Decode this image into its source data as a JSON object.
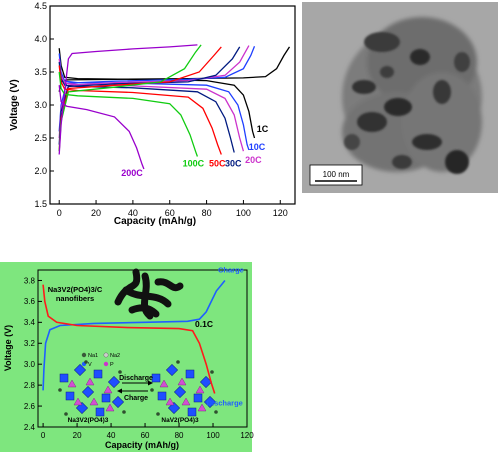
{
  "chart_data": [
    {
      "type": "line",
      "xlabel": "Capacity (mAh/g)",
      "ylabel": "Voltage (V)",
      "xlim": [
        -5,
        128
      ],
      "ylim": [
        1.5,
        4.5
      ],
      "xticks": [
        0,
        20,
        40,
        60,
        80,
        100,
        120
      ],
      "yticks": [
        1.5,
        2.0,
        2.5,
        3.0,
        3.5,
        4.0,
        4.5
      ],
      "grid": false,
      "series": [
        {
          "name": "1C",
          "color": "#000000",
          "charge": [
            [
              0,
              3.2
            ],
            [
              1,
              3.35
            ],
            [
              4,
              3.38
            ],
            [
              30,
              3.39
            ],
            [
              70,
              3.4
            ],
            [
              100,
              3.41
            ],
            [
              112,
              3.43
            ],
            [
              118,
              3.55
            ],
            [
              122,
              3.75
            ],
            [
              125,
              3.88
            ]
          ],
          "discharge": [
            [
              0,
              3.86
            ],
            [
              1,
              3.6
            ],
            [
              3,
              3.42
            ],
            [
              10,
              3.4
            ],
            [
              40,
              3.39
            ],
            [
              80,
              3.37
            ],
            [
              95,
              3.3
            ],
            [
              100,
              3.15
            ],
            [
              103,
              2.9
            ],
            [
              105,
              2.6
            ],
            [
              106,
              2.5
            ]
          ]
        },
        {
          "name": "10C",
          "color": "#1f3fff",
          "charge": [
            [
              0,
              2.6
            ],
            [
              1,
              3.0
            ],
            [
              4,
              3.33
            ],
            [
              30,
              3.36
            ],
            [
              70,
              3.39
            ],
            [
              90,
              3.42
            ],
            [
              100,
              3.55
            ],
            [
              104,
              3.75
            ],
            [
              106,
              3.89
            ]
          ],
          "discharge": [
            [
              0,
              3.78
            ],
            [
              1,
              3.5
            ],
            [
              3,
              3.36
            ],
            [
              10,
              3.34
            ],
            [
              40,
              3.33
            ],
            [
              80,
              3.3
            ],
            [
              92,
              3.2
            ],
            [
              97,
              3.0
            ],
            [
              100,
              2.7
            ],
            [
              102,
              2.4
            ],
            [
              103,
              2.32
            ]
          ]
        },
        {
          "name": "20C",
          "color": "#cc33cc",
          "charge": [
            [
              0,
              2.5
            ],
            [
              1,
              2.95
            ],
            [
              5,
              3.3
            ],
            [
              30,
              3.34
            ],
            [
              70,
              3.37
            ],
            [
              90,
              3.45
            ],
            [
              98,
              3.65
            ],
            [
              103,
              3.9
            ]
          ],
          "discharge": [
            [
              0,
              3.7
            ],
            [
              1,
              3.45
            ],
            [
              3,
              3.33
            ],
            [
              10,
              3.31
            ],
            [
              40,
              3.29
            ],
            [
              80,
              3.24
            ],
            [
              90,
              3.1
            ],
            [
              95,
              2.85
            ],
            [
              98,
              2.5
            ],
            [
              100,
              2.3
            ]
          ]
        },
        {
          "name": "30C",
          "color": "#001a80",
          "charge": [
            [
              0,
              2.4
            ],
            [
              1,
              2.9
            ],
            [
              5,
              3.28
            ],
            [
              30,
              3.32
            ],
            [
              70,
              3.35
            ],
            [
              85,
              3.45
            ],
            [
              94,
              3.7
            ],
            [
              98,
              3.88
            ]
          ],
          "discharge": [
            [
              0,
              3.65
            ],
            [
              1,
              3.4
            ],
            [
              3,
              3.3
            ],
            [
              10,
              3.28
            ],
            [
              40,
              3.26
            ],
            [
              75,
              3.2
            ],
            [
              85,
              3.05
            ],
            [
              90,
              2.8
            ],
            [
              93,
              2.5
            ],
            [
              95,
              2.28
            ]
          ]
        },
        {
          "name": "50C",
          "color": "#ff0000",
          "charge": [
            [
              0,
              2.3
            ],
            [
              1,
              2.8
            ],
            [
              5,
              3.25
            ],
            [
              30,
              3.3
            ],
            [
              60,
              3.35
            ],
            [
              76,
              3.5
            ],
            [
              84,
              3.75
            ],
            [
              88,
              3.88
            ]
          ],
          "discharge": [
            [
              0,
              3.6
            ],
            [
              1,
              3.35
            ],
            [
              3,
              3.24
            ],
            [
              10,
              3.22
            ],
            [
              40,
              3.19
            ],
            [
              70,
              3.12
            ],
            [
              78,
              2.95
            ],
            [
              83,
              2.65
            ],
            [
              86,
              2.4
            ],
            [
              88,
              2.25
            ]
          ]
        },
        {
          "name": "100C",
          "color": "#11cc11",
          "charge": [
            [
              0,
              2.3
            ],
            [
              1,
              2.75
            ],
            [
              5,
              3.2
            ],
            [
              30,
              3.27
            ],
            [
              55,
              3.35
            ],
            [
              68,
              3.55
            ],
            [
              74,
              3.8
            ],
            [
              77,
              3.91
            ]
          ],
          "discharge": [
            [
              0,
              3.5
            ],
            [
              1,
              3.25
            ],
            [
              3,
              3.16
            ],
            [
              10,
              3.14
            ],
            [
              40,
              3.1
            ],
            [
              60,
              3.02
            ],
            [
              66,
              2.85
            ],
            [
              71,
              2.55
            ],
            [
              74,
              2.3
            ],
            [
              75,
              2.22
            ]
          ]
        },
        {
          "name": "200C",
          "color": "#9900cc",
          "charge": [
            [
              0,
              2.25
            ],
            [
              1,
              2.7
            ],
            [
              3,
              3.2
            ],
            [
              5,
              3.7
            ],
            [
              7,
              3.78
            ],
            [
              20,
              3.81
            ],
            [
              40,
              3.85
            ],
            [
              60,
              3.88
            ],
            [
              75,
              3.91
            ]
          ],
          "discharge": [
            [
              0,
              3.3
            ],
            [
              1,
              3.05
            ],
            [
              4,
              2.98
            ],
            [
              15,
              2.93
            ],
            [
              30,
              2.82
            ],
            [
              38,
              2.6
            ],
            [
              42,
              2.35
            ],
            [
              45,
              2.1
            ],
            [
              46,
              2.03
            ]
          ]
        }
      ]
    },
    {
      "type": "line",
      "xlabel": "Capacity (mAh/g)",
      "ylabel": "Voltage (V)",
      "xlim": [
        -3,
        120
      ],
      "ylim": [
        2.4,
        3.9
      ],
      "xticks": [
        0,
        20,
        40,
        60,
        80,
        100,
        120
      ],
      "yticks": [
        2.4,
        2.6,
        2.8,
        3.0,
        3.2,
        3.4,
        3.6,
        3.8
      ],
      "grid": false,
      "background": "#7ee67e",
      "annotations": {
        "material": [
          "Na3V2(PO4)3/C",
          "nanofibers"
        ],
        "rate": "0.1C",
        "arrow_top": "Discharge",
        "arrow_bottom": "Charge",
        "legend_items": [
          "Na1",
          "Na2",
          "V",
          "P"
        ],
        "left_structure": "Na3V2(PO4)3",
        "right_structure": "NaV2(PO4)3"
      },
      "series": [
        {
          "name": "Charge",
          "color": "#1f5fff",
          "points": [
            [
              0,
              2.75
            ],
            [
              0.5,
              2.95
            ],
            [
              1.5,
              3.2
            ],
            [
              4,
              3.33
            ],
            [
              10,
              3.37
            ],
            [
              30,
              3.39
            ],
            [
              60,
              3.4
            ],
            [
              85,
              3.41
            ],
            [
              92,
              3.43
            ],
            [
              96,
              3.5
            ],
            [
              99,
              3.6
            ],
            [
              102,
              3.7
            ],
            [
              105,
              3.76
            ],
            [
              107,
              3.8
            ]
          ]
        },
        {
          "name": "Discharge",
          "color": "#ff1a1a",
          "points": [
            [
              0,
              3.76
            ],
            [
              1,
              3.6
            ],
            [
              3,
              3.46
            ],
            [
              8,
              3.4
            ],
            [
              20,
              3.37
            ],
            [
              50,
              3.35
            ],
            [
              80,
              3.34
            ],
            [
              88,
              3.32
            ],
            [
              92,
              3.2
            ],
            [
              96,
              3.0
            ],
            [
              99,
              2.82
            ],
            [
              101,
              2.72
            ]
          ]
        }
      ]
    }
  ],
  "tem_image": {
    "scale_bar_label": "100 nm"
  }
}
